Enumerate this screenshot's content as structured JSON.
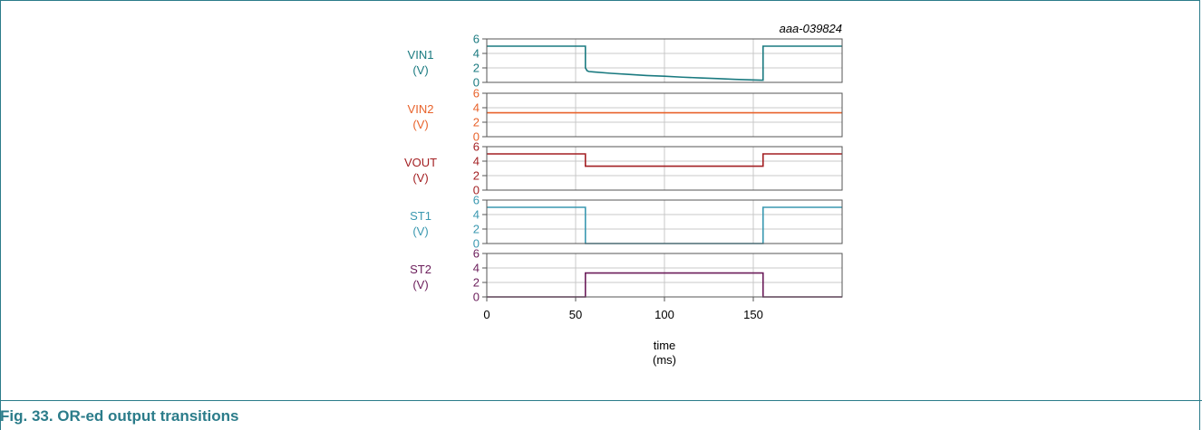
{
  "figure": {
    "id": "aaa-039824",
    "caption": "Fig. 33.   OR-ed output transitions",
    "caption_color": "#2b7c8a",
    "frame_color": "#2b7c8a"
  },
  "chart_data": {
    "type": "line",
    "xlabel": "time",
    "xunit": "(ms)",
    "xlim": [
      0,
      200
    ],
    "xticks": [
      0,
      50,
      100,
      150
    ],
    "ylim": [
      0,
      6
    ],
    "yticks": [
      0,
      2,
      4,
      6
    ],
    "grid": true,
    "series": [
      {
        "name": "VIN1",
        "unit": "(V)",
        "color": "#1a7a80",
        "x": [
          0,
          55.5,
          55.5,
          56.5,
          57.5,
          60,
          70,
          80,
          90,
          100,
          110,
          120,
          130,
          140,
          150,
          154.5,
          155.5,
          155.5,
          200
        ],
        "y": [
          5.0,
          5.0,
          2.0,
          1.6,
          1.5,
          1.45,
          1.25,
          1.1,
          0.95,
          0.85,
          0.72,
          0.62,
          0.52,
          0.42,
          0.33,
          0.3,
          0.3,
          5.0,
          5.0
        ]
      },
      {
        "name": "VIN2",
        "unit": "(V)",
        "color": "#e8622a",
        "x": [
          0,
          200
        ],
        "y": [
          3.3,
          3.3
        ]
      },
      {
        "name": "VOUT",
        "unit": "(V)",
        "color": "#a31f22",
        "x": [
          0,
          55.5,
          55.5,
          155.5,
          155.5,
          200
        ],
        "y": [
          5.0,
          5.0,
          3.3,
          3.3,
          5.0,
          5.0
        ]
      },
      {
        "name": "ST1",
        "unit": "(V)",
        "color": "#3a98b0",
        "x": [
          0,
          55.5,
          55.5,
          155.5,
          155.5,
          200
        ],
        "y": [
          5.0,
          5.0,
          0.0,
          0.0,
          5.0,
          5.0
        ]
      },
      {
        "name": "ST2",
        "unit": "(V)",
        "color": "#6b1d5a",
        "x": [
          0,
          55.5,
          55.5,
          155.5,
          155.5,
          200
        ],
        "y": [
          0.0,
          0.0,
          3.3,
          3.3,
          0.0,
          0.0
        ]
      }
    ]
  }
}
